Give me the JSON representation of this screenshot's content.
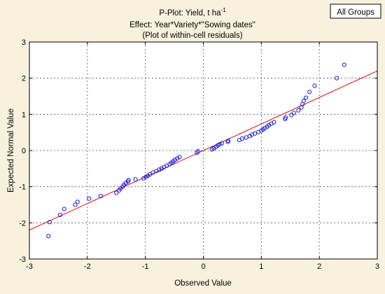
{
  "chart_data": {
    "type": "scatter",
    "title_line1_main": "P-Plot: Yield, t ha",
    "title_line1_sup": "-1",
    "title_line2": "Effect: Year*Variety*\"Sowing dates\"",
    "title_line3": "(Plot of within-cell residuals)",
    "xlabel": "Observed Value",
    "ylabel": "Expected Normal Value",
    "legend_label": "All Groups",
    "xlim": [
      -3,
      3
    ],
    "ylim": [
      -3,
      3
    ],
    "x_ticks": [
      -3,
      -2,
      -1,
      0,
      1,
      2,
      3
    ],
    "y_ticks": [
      -3,
      -2,
      -1,
      0,
      1,
      2,
      3
    ],
    "x_tick_labels": [
      "-3",
      "-2",
      "-1",
      "0",
      "1",
      "2",
      "3"
    ],
    "y_tick_labels": [
      "-3",
      "-2",
      "-1",
      "0",
      "1",
      "2",
      "3"
    ],
    "grid": true,
    "point_color": "#1a1ad6",
    "line_color": "#e0201a",
    "reference_line": {
      "x": [
        -3,
        3
      ],
      "y": [
        -2.2,
        2.2
      ]
    },
    "points": {
      "x": [
        -2.67,
        -2.65,
        -2.47,
        -2.4,
        -2.21,
        -2.17,
        -1.97,
        -1.77,
        -1.5,
        -1.45,
        -1.43,
        -1.39,
        -1.37,
        -1.34,
        -1.3,
        -1.29,
        -1.17,
        -1.03,
        -0.99,
        -0.96,
        -0.92,
        -0.87,
        -0.81,
        -0.76,
        -0.72,
        -0.68,
        -0.63,
        -0.58,
        -0.55,
        -0.52,
        -0.49,
        -0.45,
        -0.41,
        -0.11,
        -0.09,
        0.15,
        0.18,
        0.22,
        0.25,
        0.28,
        0.32,
        0.42,
        0.43,
        0.62,
        0.67,
        0.74,
        0.8,
        0.84,
        0.89,
        0.95,
        1.0,
        1.03,
        1.06,
        1.1,
        1.13,
        1.17,
        1.22,
        1.41,
        1.42,
        1.52,
        1.56,
        1.64,
        1.69,
        1.71,
        1.73,
        1.77,
        1.83,
        1.92,
        2.3,
        2.43
      ],
      "y": [
        -2.37,
        -1.98,
        -1.78,
        -1.62,
        -1.5,
        -1.42,
        -1.33,
        -1.26,
        -1.17,
        -1.1,
        -1.05,
        -1.0,
        -0.95,
        -0.9,
        -0.86,
        -0.82,
        -0.8,
        -0.77,
        -0.73,
        -0.7,
        -0.66,
        -0.61,
        -0.57,
        -0.53,
        -0.5,
        -0.46,
        -0.42,
        -0.38,
        -0.34,
        -0.3,
        -0.26,
        -0.22,
        -0.18,
        -0.06,
        -0.02,
        0.03,
        0.06,
        0.1,
        0.14,
        0.17,
        0.2,
        0.24,
        0.27,
        0.29,
        0.33,
        0.36,
        0.4,
        0.44,
        0.47,
        0.51,
        0.55,
        0.58,
        0.62,
        0.66,
        0.7,
        0.74,
        0.78,
        0.87,
        0.91,
        0.98,
        1.04,
        1.11,
        1.19,
        1.28,
        1.37,
        1.46,
        1.62,
        1.79,
        2.0,
        2.37
      ]
    }
  }
}
